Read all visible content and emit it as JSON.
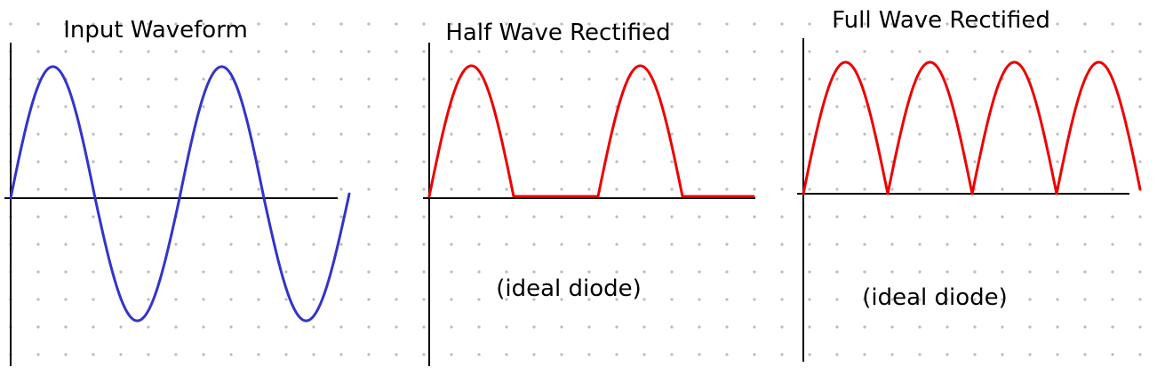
{
  "panels": [
    {
      "title": "Input Waveform",
      "note": "",
      "kind": "sine",
      "color": "#3333cc"
    },
    {
      "title": "Half Wave Rectified",
      "note": "(ideal diode)",
      "kind": "half-wave",
      "color": "#ee0000"
    },
    {
      "title": "Full Wave Rectified",
      "note": "(ideal diode)",
      "kind": "full-wave",
      "color": "#ee0000"
    }
  ],
  "grid": {
    "dot_color": "#bbbbbb"
  },
  "axis_color": "#000000"
}
